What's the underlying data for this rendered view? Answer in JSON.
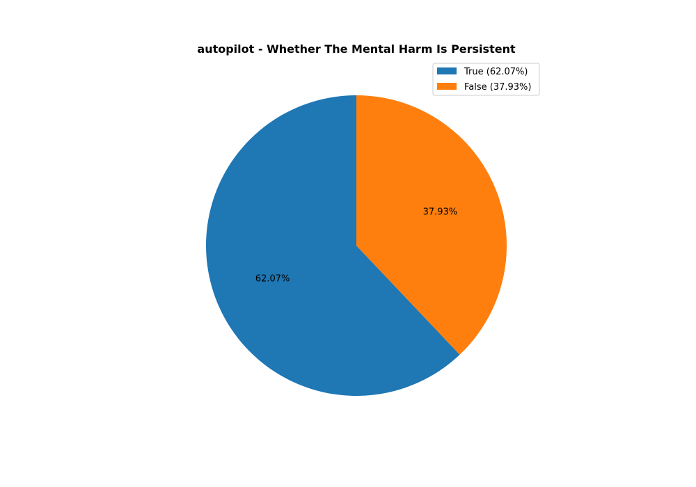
{
  "chart_data": {
    "type": "pie",
    "title": "autopilot - Whether The Mental Harm Is Persistent",
    "categories": [
      "True",
      "False"
    ],
    "values": [
      62.07,
      37.93
    ],
    "slice_labels": [
      "62.07%",
      "37.93%"
    ],
    "legend_entries": [
      "True (62.07%)",
      "False (37.93%)"
    ],
    "colors": [
      "#1f77b4",
      "#ff7f0e"
    ],
    "legend_placement": "top-right",
    "start_angle": "top, counter-clockwise"
  }
}
